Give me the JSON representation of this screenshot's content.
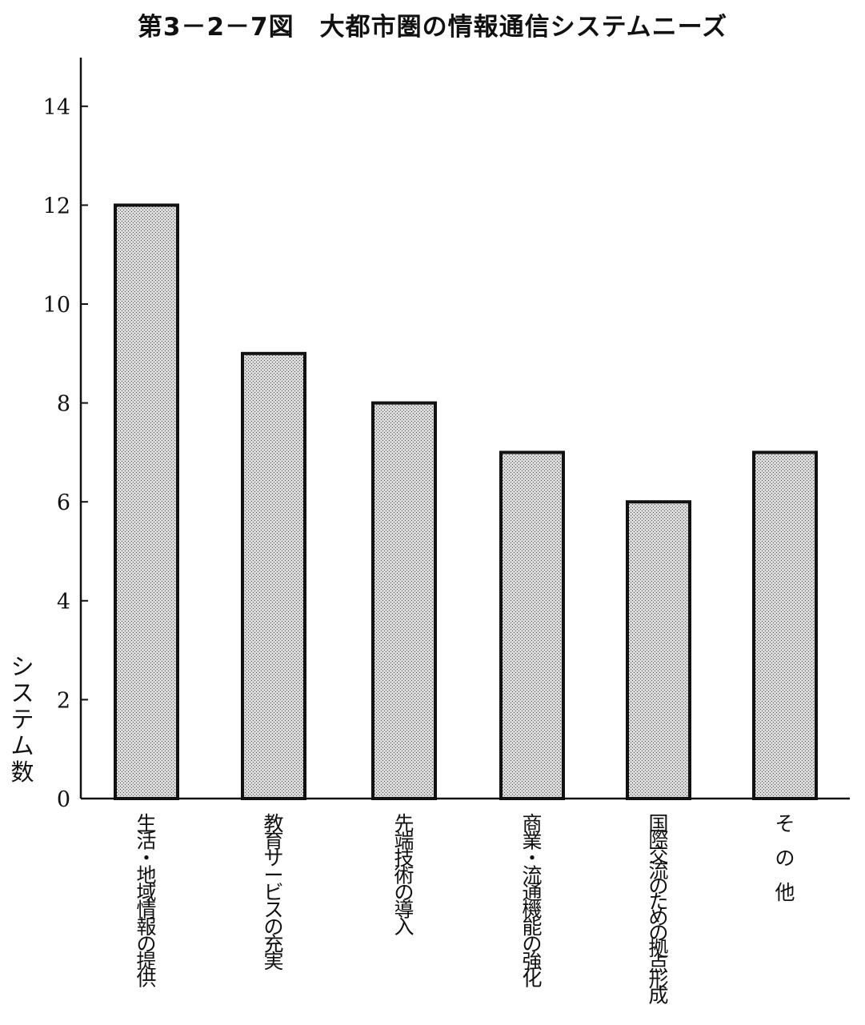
{
  "chart_data": {
    "type": "bar",
    "title": "第3－2－7図　大都市圏の情報通信システムニーズ",
    "ylabel": "システム数",
    "xlabel": "",
    "categories": [
      "生活・地域情報の提供",
      "教育サービスの充実",
      "先端技術の導入",
      "商業・流通機能の強化",
      "国際交流のための拠点形成",
      "そ　の　他"
    ],
    "values": [
      12,
      9,
      8,
      7,
      6,
      7
    ],
    "ylim": [
      0,
      15
    ],
    "yticks": [
      0,
      2,
      4,
      6,
      8,
      10,
      12,
      14
    ],
    "grid": false,
    "legend": "none",
    "bar_fill": "#c8c8c8",
    "bar_stroke": "#111111"
  }
}
